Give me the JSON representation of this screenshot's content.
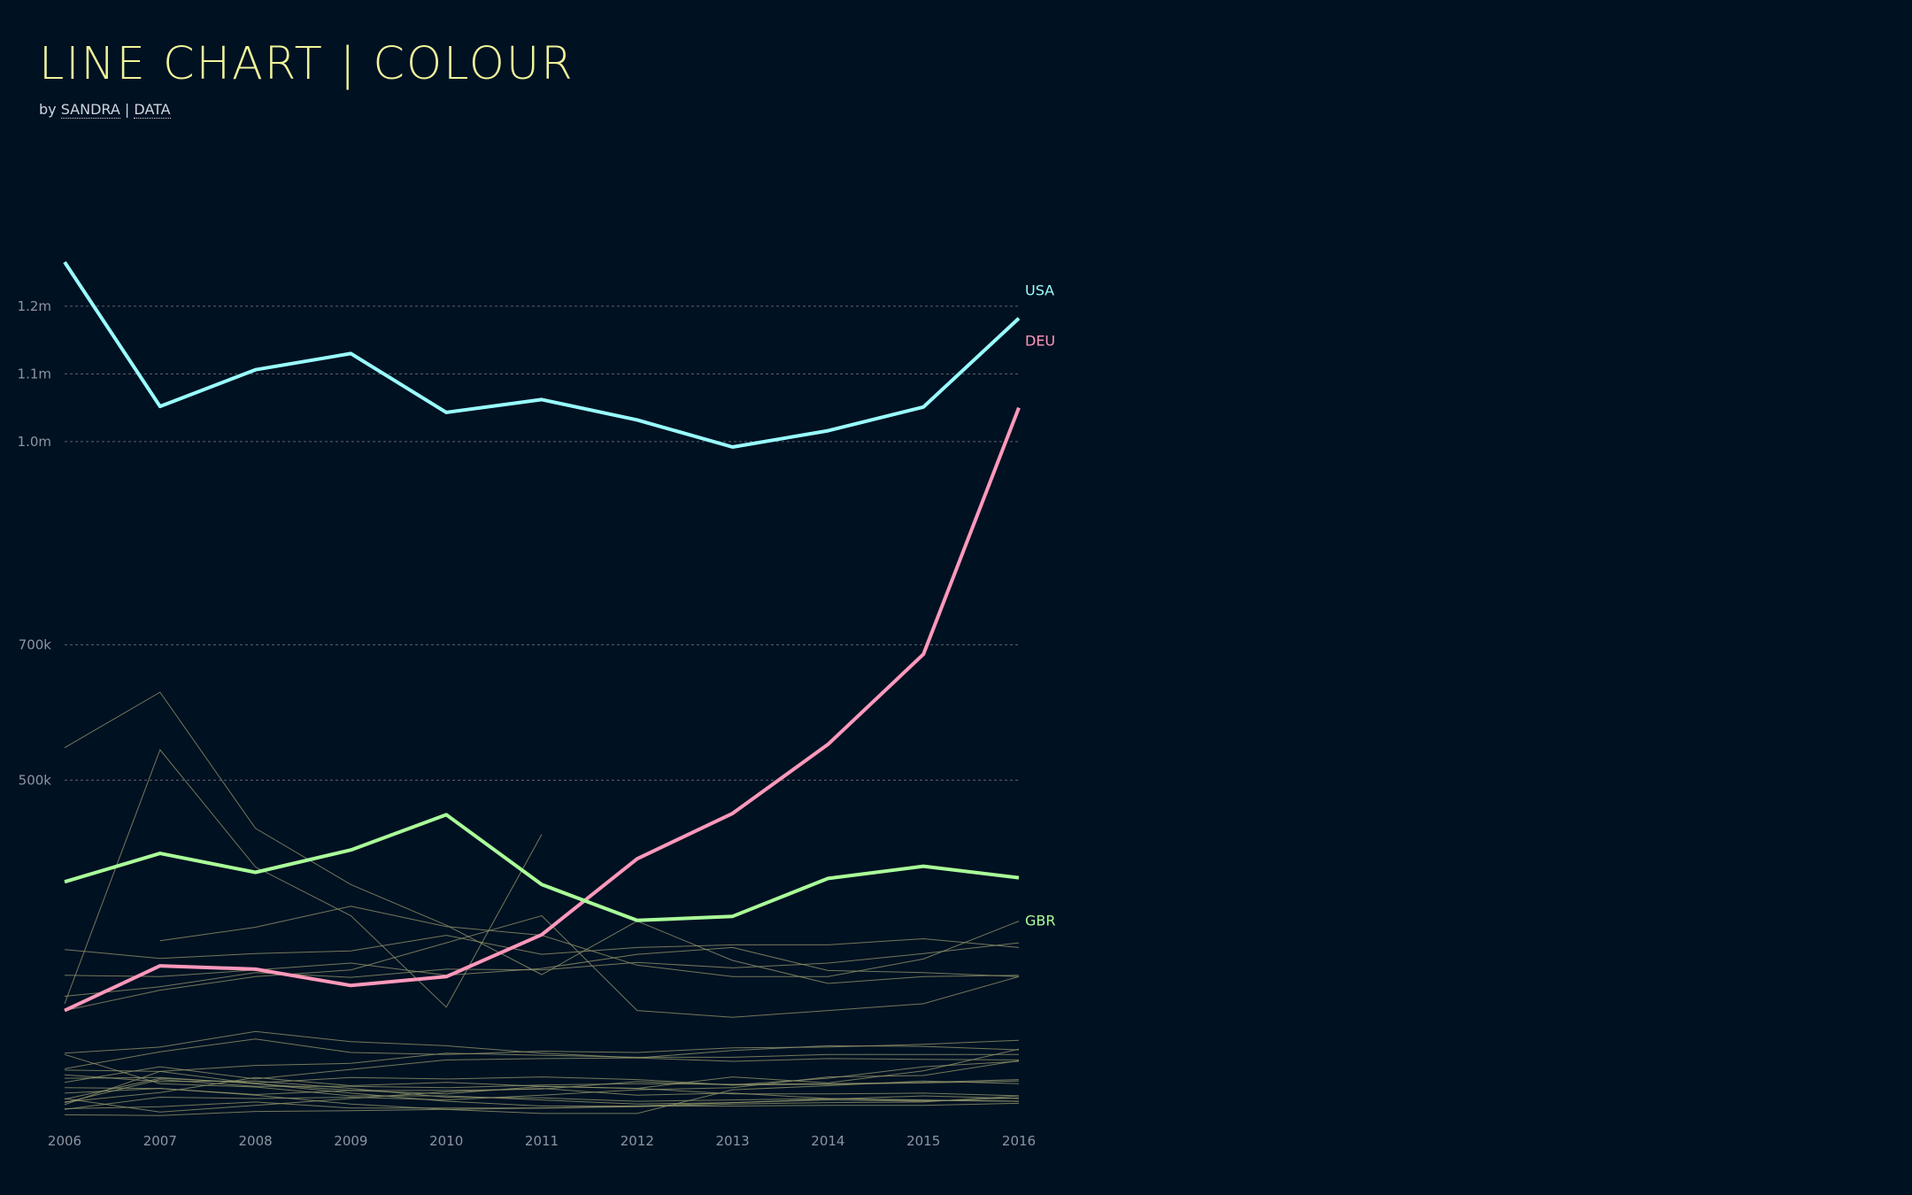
{
  "header": {
    "title": "LINE CHART | COLOUR",
    "by_prefix": "by",
    "author_link": "SANDRA",
    "separator": "|",
    "data_link": "DATA"
  },
  "colors": {
    "background": "#001122",
    "title": "#f0f59a",
    "background_lines": "#9a9b6e",
    "gridline": "#5b6470"
  },
  "chart_data": {
    "type": "line",
    "title": "LINE CHART | COLOUR",
    "xlabel": "",
    "ylabel": "",
    "x": [
      2006,
      2007,
      2008,
      2009,
      2010,
      2011,
      2012,
      2013,
      2014,
      2015,
      2016
    ],
    "ylim": [
      0,
      1320000
    ],
    "y_ticks": [
      {
        "value": 500000,
        "label": "500k"
      },
      {
        "value": 700000,
        "label": "700k"
      },
      {
        "value": 1000000,
        "label": "1.0m"
      },
      {
        "value": 1100000,
        "label": "1.1m"
      },
      {
        "value": 1200000,
        "label": "1.2m"
      }
    ],
    "grid": true,
    "series": [
      {
        "name": "USA",
        "color": "#99ffff",
        "highlight": true,
        "values": [
          1265000,
          1052000,
          1106000,
          1130000,
          1043000,
          1062000,
          1032000,
          992000,
          1016000,
          1051000,
          1182000
        ]
      },
      {
        "name": "DEU",
        "color": "#ff99bb",
        "highlight": true,
        "values": [
          160000,
          226000,
          221000,
          197000,
          210000,
          272000,
          384000,
          451000,
          553000,
          686000,
          1050000
        ]
      },
      {
        "name": "GBR",
        "color": "#aaff99",
        "highlight": true,
        "values": [
          350000,
          392000,
          364000,
          397000,
          449000,
          346000,
          293000,
          299000,
          355000,
          373000,
          356000
        ]
      },
      {
        "values": [
          548000,
          630000,
          429000,
          346000,
          286000,
          213000,
          292000,
          234000,
          200000,
          210000,
          212000
        ]
      },
      {
        "values": [
          170000,
          545000,
          372000,
          300000,
          165000,
          420000,
          null,
          null,
          null,
          null,
          null
        ]
      },
      {
        "values": [
          null,
          263000,
          283000,
          314000,
          284000,
          271000,
          227000,
          210000,
          210000,
          236000,
          292000
        ]
      },
      {
        "values": [
          250000,
          237000,
          244000,
          248000,
          271000,
          243000,
          253000,
          257000,
          257000,
          266000,
          253000
        ]
      },
      {
        "values": [
          212000,
          210000,
          220000,
          230000,
          212000,
          222000,
          243000,
          253000,
          219000,
          216000,
          210000
        ]
      },
      {
        "values": [
          181000,
          195000,
          216000,
          209000,
          221000,
          220000,
          231000,
          223000,
          230000,
          244000,
          260000
        ]
      },
      {
        "values": [
          160000,
          190000,
          210000,
          220000,
          260000,
          300000,
          160000,
          150000,
          160000,
          170000,
          210000
        ]
      },
      {
        "values": [
          97000,
          106000,
          129000,
          114000,
          108000,
          97000,
          90000,
          85000,
          89000,
          88000,
          87000
        ]
      },
      {
        "values": [
          74000,
          99000,
          118000,
          98000,
          95000,
          100000,
          98000,
          105000,
          106000,
          110000,
          116000
        ]
      },
      {
        "values": [
          54000,
          77000,
          59000,
          73000,
          87000,
          89000,
          90000,
          101000,
          108000,
          107000,
          102000
        ]
      },
      {
        "values": [
          95000,
          52000,
          47000,
          34000,
          34000,
          28000,
          22000,
          24000,
          29000,
          34000,
          30000
        ]
      },
      {
        "values": [
          21000,
          70000,
          52000,
          42000,
          42000,
          44000,
          55000,
          50000,
          51000,
          53000,
          56000
        ]
      },
      {
        "values": [
          25000,
          39000,
          61000,
          49000,
          54000,
          48000,
          45000,
          62000,
          53000,
          71000,
          103000
        ]
      },
      {
        "values": [
          38000,
          45000,
          35000,
          22000,
          14000,
          8000,
          8000,
          43000,
          49000,
          56000,
          52000
        ]
      },
      {
        "values": [
          72000,
          70000,
          79000,
          82000,
          97000,
          94000,
          91000,
          91000,
          95000,
          95000,
          95000
        ]
      },
      {
        "values": [
          60000,
          61000,
          52000,
          38000,
          26000,
          19000,
          19000,
          24000,
          28000,
          26000,
          31000
        ]
      },
      {
        "values": [
          46000,
          45000,
          36000,
          42000,
          37000,
          48000,
          45000,
          37000,
          37000,
          38000,
          34000
        ]
      },
      {
        "values": [
          14000,
          32000,
          30000,
          32000,
          28000,
          35000,
          43000,
          46000,
          62000,
          64000,
          86000
        ]
      },
      {
        "values": [
          6000,
          5000,
          11000,
          12000,
          14000,
          16000,
          18000,
          22000,
          24000,
          25000,
          34000
        ]
      },
      {
        "values": [
          65000,
          55000,
          56000,
          45000,
          32000,
          31000,
          26000,
          28000,
          30000,
          27000,
          26000
        ]
      },
      {
        "values": [
          24000,
          58000,
          48000,
          48000,
          46000,
          50000,
          52000,
          51000,
          52000,
          54000,
          58000
        ]
      },
      {
        "values": [
          29000,
          60000,
          53000,
          61000,
          59000,
          62000,
          58000,
          50000,
          60000,
          77000,
          85000
        ]
      },
      {
        "values": [
          30000,
          10000,
          20000,
          30000,
          40000,
          45000,
          35000,
          38000,
          30000,
          28000,
          26000
        ]
      },
      {
        "values": [
          15000,
          18000,
          25000,
          16000,
          16000,
          16000,
          19000,
          19000,
          20000,
          20000,
          23000
        ]
      }
    ]
  }
}
